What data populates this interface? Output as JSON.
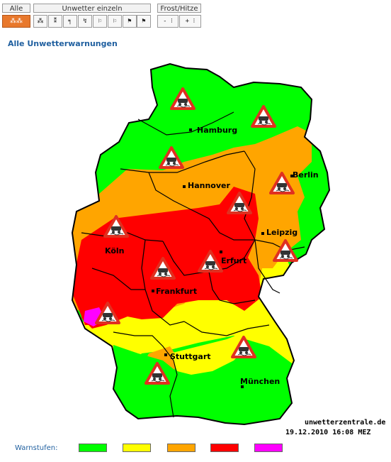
{
  "toolbar": {
    "all_label": "Alle",
    "single_label": "Unwetter einzeln",
    "frost_label": "Frost/Hitze",
    "single_buttons": [
      "⁂",
      "⁑",
      "╕",
      "↯",
      "⚐",
      "⚐",
      "⚑",
      "⚑"
    ],
    "frost_buttons": [
      "- ⁝",
      "+ ⁝"
    ]
  },
  "page_title": "Alle Unwetterwarnungen",
  "map": {
    "cities": [
      "Hamburg",
      "Berlin",
      "Hannover",
      "Leipzig",
      "Köln",
      "Erfurt",
      "Frankfurt",
      "Stuttgart",
      "München"
    ],
    "source": "unwetterzentrale.de",
    "timestamp": "19.12.2010 16:08 MEZ",
    "warning_icon": "slippery-road-warning-icon"
  },
  "legend": {
    "label": "Warnstufen:",
    "colors": [
      "#00ff00",
      "#ffff00",
      "#ffa500",
      "#ff0000",
      "#ff00ff"
    ]
  }
}
